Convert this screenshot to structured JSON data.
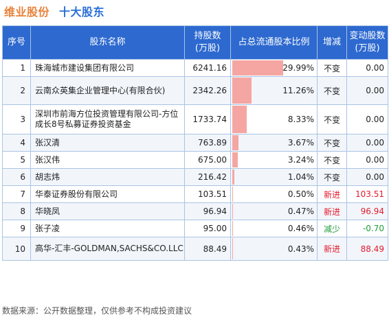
{
  "title": {
    "company": "维业股份",
    "section": "十大股东"
  },
  "headers": {
    "idx": "序号",
    "name": "股东名称",
    "shares_l1": "持股数",
    "shares_l2": "(万股)",
    "ratio": "占总流通股本比例",
    "change": "增减",
    "delta_l1": "变动股数",
    "delta_l2": "(万股)"
  },
  "colors": {
    "header_bg": "#2d69cf",
    "bar": "#f5a6a3",
    "new": "#e3192c",
    "decrease": "#1e9e3a",
    "title_company": "#e8823a",
    "title_section": "#2a6fd6"
  },
  "chart_data": {
    "type": "table",
    "columns": [
      "序号",
      "股东名称",
      "持股数(万股)",
      "占总流通股本比例",
      "增减",
      "变动股数(万股)"
    ],
    "rows": [
      {
        "idx": "1",
        "name": "珠海城市建设集团有限公司",
        "shares": "6241.16",
        "ratio": "29.99%",
        "ratio_value": 29.99,
        "change": "不变",
        "change_kind": "none",
        "delta": "0.00"
      },
      {
        "idx": "2",
        "name": "云南众英集企业管理中心(有限合伙)",
        "shares": "2342.26",
        "ratio": "11.26%",
        "ratio_value": 11.26,
        "change": "不变",
        "change_kind": "none",
        "delta": "0.00"
      },
      {
        "idx": "3",
        "name": "深圳市前海方位投资管理有限公司-方位成长8号私募证券投资基金",
        "shares": "1733.74",
        "ratio": "8.33%",
        "ratio_value": 8.33,
        "change": "不变",
        "change_kind": "none",
        "delta": "0.00"
      },
      {
        "idx": "4",
        "name": "张汉清",
        "shares": "763.89",
        "ratio": "3.67%",
        "ratio_value": 3.67,
        "change": "不变",
        "change_kind": "none",
        "delta": "0.00"
      },
      {
        "idx": "5",
        "name": "张汉伟",
        "shares": "675.00",
        "ratio": "3.24%",
        "ratio_value": 3.24,
        "change": "不变",
        "change_kind": "none",
        "delta": "0.00"
      },
      {
        "idx": "6",
        "name": "胡志炜",
        "shares": "216.42",
        "ratio": "1.04%",
        "ratio_value": 1.04,
        "change": "不变",
        "change_kind": "none",
        "delta": "0.00"
      },
      {
        "idx": "7",
        "name": "华泰证券股份有限公司",
        "shares": "103.51",
        "ratio": "0.50%",
        "ratio_value": 0.5,
        "change": "新进",
        "change_kind": "new",
        "delta": "103.51"
      },
      {
        "idx": "8",
        "name": "华晓凤",
        "shares": "96.94",
        "ratio": "0.47%",
        "ratio_value": 0.47,
        "change": "新进",
        "change_kind": "new",
        "delta": "96.94"
      },
      {
        "idx": "9",
        "name": "张子凌",
        "shares": "95.00",
        "ratio": "0.46%",
        "ratio_value": 0.46,
        "change": "减少",
        "change_kind": "less",
        "delta": "-0.70"
      },
      {
        "idx": "10",
        "name": "高华-汇丰-GOLDMAN,SACHS&CO.LLC",
        "shares": "88.49",
        "ratio": "0.43%",
        "ratio_value": 0.43,
        "change": "新进",
        "change_kind": "new",
        "delta": "88.49"
      }
    ]
  },
  "footer": "数据来源：公开数据整理，仅供参考不构成投资建议"
}
